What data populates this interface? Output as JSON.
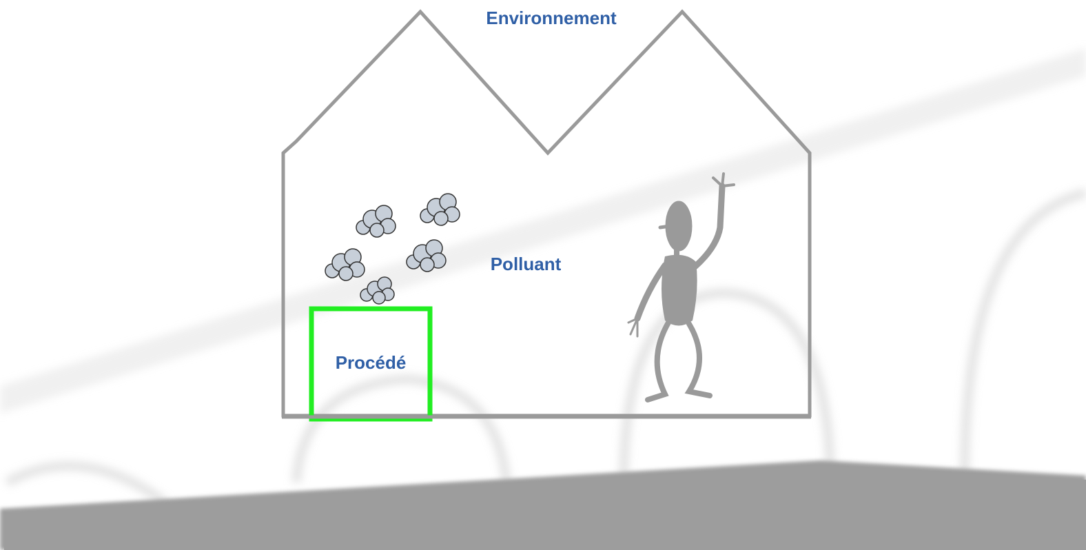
{
  "nodes": [
    {
      "label": "Environnement"
    },
    {
      "label": "Polluant"
    },
    {
      "label": "Procédé"
    }
  ]
}
